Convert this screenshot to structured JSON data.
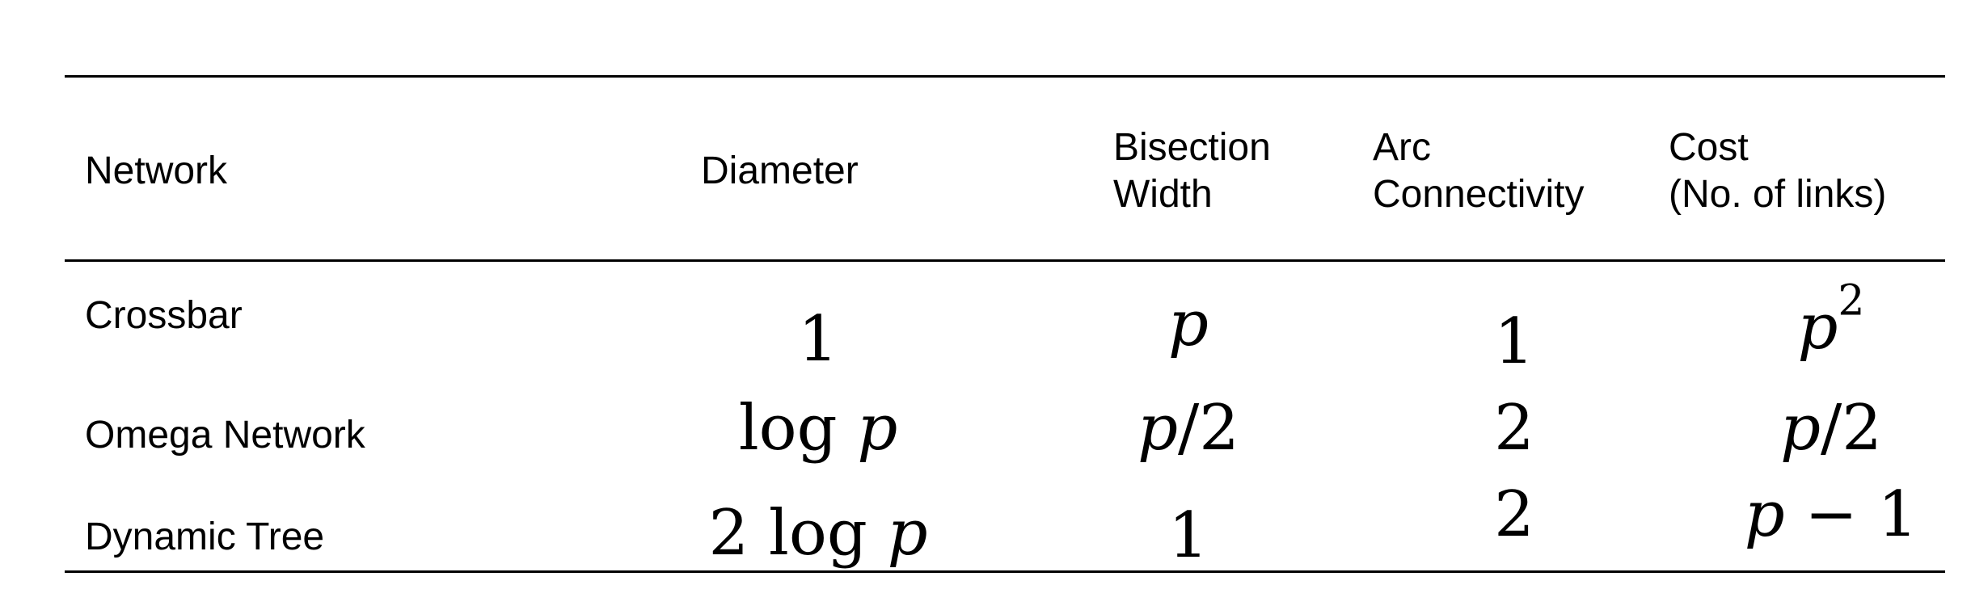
{
  "table": {
    "headers": {
      "network": "Network",
      "diameter": "Diameter",
      "bisection_line1": "Bisection",
      "bisection_line2": "Width",
      "arc_line1": "Arc",
      "arc_line2": "Connectivity",
      "cost_line1": "Cost",
      "cost_line2": "(No. of links)"
    },
    "rows": [
      {
        "network": "Crossbar",
        "diameter": "1",
        "bisection_var": "p",
        "arc": "1",
        "cost_var": "p",
        "cost_exp": "2"
      },
      {
        "network": "Omega Network",
        "diameter_pre": "log ",
        "diameter_var": "p",
        "bisection_var": "p",
        "bisection_post": "/2",
        "arc": "2",
        "cost_var": "p",
        "cost_post": "/2"
      },
      {
        "network": "Dynamic Tree",
        "diameter_pre": "2 log ",
        "diameter_var": "p",
        "bisection": "1",
        "arc": "2",
        "cost_var": "p",
        "cost_post": " − 1"
      }
    ]
  }
}
